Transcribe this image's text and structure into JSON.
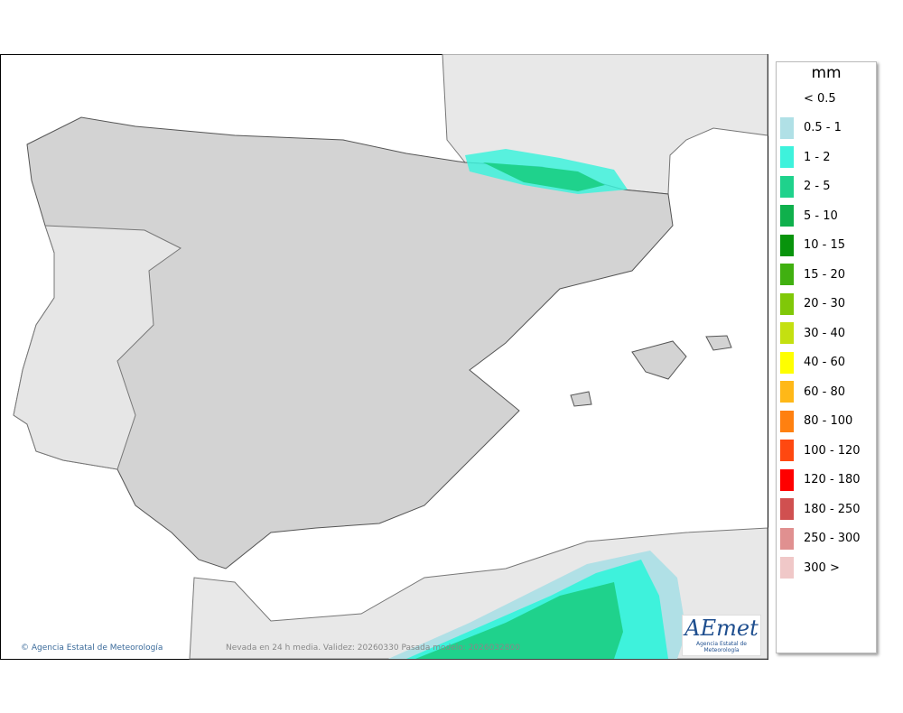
{
  "legend": {
    "title": "mm",
    "items": [
      {
        "label": "< 0.5",
        "color": null
      },
      {
        "label": "0.5 - 1",
        "color": "#b0e0e6"
      },
      {
        "label": "1 - 2",
        "color": "#3ef2dc"
      },
      {
        "label": "2 - 5",
        "color": "#1fd28c"
      },
      {
        "label": "5 - 10",
        "color": "#0fb04c"
      },
      {
        "label": "10 - 15",
        "color": "#08940c"
      },
      {
        "label": "15 - 20",
        "color": "#40b010"
      },
      {
        "label": "20 - 30",
        "color": "#80c808"
      },
      {
        "label": "30 - 40",
        "color": "#c4e010"
      },
      {
        "label": "40 - 60",
        "color": "#ffff00"
      },
      {
        "label": "60 - 80",
        "color": "#ffb818"
      },
      {
        "label": "80 - 100",
        "color": "#ff8010"
      },
      {
        "label": "100 - 120",
        "color": "#ff4810"
      },
      {
        "label": "120 - 180",
        "color": "#ff0000"
      },
      {
        "label": "180 - 250",
        "color": "#d05050"
      },
      {
        "label": "250 - 300",
        "color": "#e09090"
      },
      {
        "label": "300 >",
        "color": "#f0c8c8"
      }
    ]
  },
  "footer": {
    "credit": "Agencia Estatal de Meteorología",
    "validity": "Nevada en 24 h media. Validez: 20260330 Pasada modelo: 2026032800"
  },
  "logo": {
    "name": "AEmet",
    "subtitle": "Agencia Estatal de Meteorología"
  }
}
